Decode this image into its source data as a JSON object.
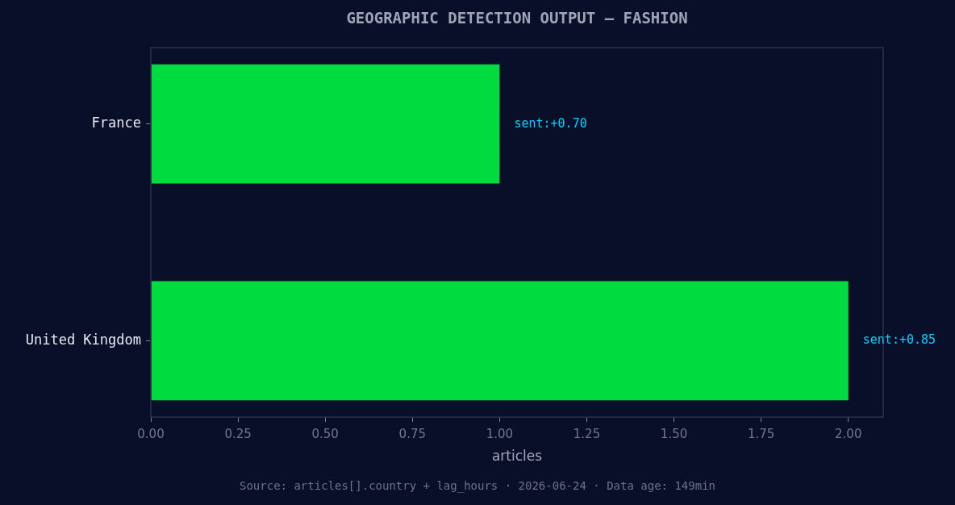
{
  "chart_data": {
    "type": "bar",
    "orientation": "horizontal",
    "title": "GEOGRAPHIC DETECTION OUTPUT — FASHION",
    "xlabel": "articles",
    "categories": [
      "France",
      "United Kingdom"
    ],
    "values": [
      1,
      2
    ],
    "color": "#00db3f",
    "xlim": [
      0,
      2.1
    ],
    "xticks": [
      {
        "value": 0,
        "label": "0.00"
      },
      {
        "value": 0.25,
        "label": "0.25"
      },
      {
        "value": 0.5,
        "label": "0.50"
      },
      {
        "value": 0.75,
        "label": "0.75"
      },
      {
        "value": 1,
        "label": "1.00"
      },
      {
        "value": 1.25,
        "label": "1.25"
      },
      {
        "value": 1.5,
        "label": "1.50"
      },
      {
        "value": 1.75,
        "label": "1.75"
      },
      {
        "value": 2,
        "label": "2.00"
      }
    ],
    "annotations": [
      {
        "text": "sent:+0.70",
        "x": 1,
        "y": "France"
      },
      {
        "text": "sent:+0.85",
        "x": 2,
        "y": "United Kingdom"
      },
      "Source: articles[].country + lag_hours · 2026-06-24 · Data age: 149min"
    ]
  }
}
